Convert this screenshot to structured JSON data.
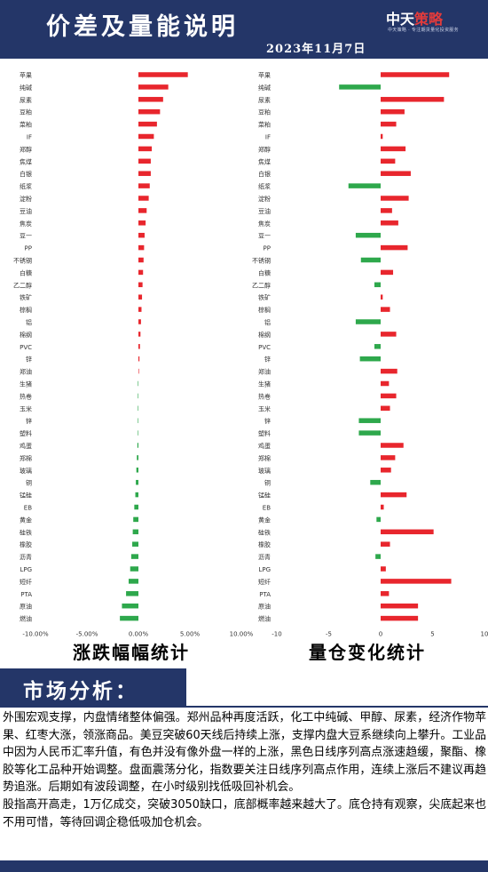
{
  "header": {
    "title": "价差及量能说明",
    "date": "2023年11月7日",
    "logo_main_a": "中天",
    "logo_main_b": "策略",
    "logo_sub": "中天策略 · 专注期货量化投资服务"
  },
  "colors": {
    "navy": "#243668",
    "up": "#e8262d",
    "down": "#2ea84c"
  },
  "chart_data": [
    {
      "type": "bar",
      "orientation": "horizontal",
      "title": "涨跌幅幅统计",
      "categories": [
        "苹果",
        "纯碱",
        "尿素",
        "豆粕",
        "菜粕",
        "IF",
        "郑醇",
        "焦煤",
        "白银",
        "纸浆",
        "淀粉",
        "豆油",
        "焦炭",
        "豆一",
        "PP",
        "不锈钢",
        "白糖",
        "乙二醇",
        "铁矿",
        "棕榈",
        "铝",
        "棉纲",
        "PVC",
        "锌",
        "郑油",
        "生猪",
        "热卷",
        "玉米",
        "锌",
        "塑料",
        "鸡蛋",
        "郑棉",
        "玻璃",
        "铜",
        "锰硅",
        "EB",
        "黄金",
        "硅铁",
        "橡胶",
        "沥青",
        "LPG",
        "短纤",
        "PTA",
        "原油",
        "燃油"
      ],
      "values": [
        4.8,
        2.9,
        2.4,
        2.1,
        1.8,
        1.5,
        1.3,
        1.2,
        1.2,
        1.1,
        1.0,
        0.8,
        0.7,
        0.6,
        0.55,
        0.5,
        0.45,
        0.4,
        0.35,
        0.3,
        0.25,
        0.2,
        0.15,
        0.1,
        0.05,
        -0.05,
        -0.05,
        -0.05,
        -0.05,
        -0.05,
        -0.1,
        -0.15,
        -0.2,
        -0.25,
        -0.3,
        -0.4,
        -0.5,
        -0.55,
        -0.6,
        -0.7,
        -0.8,
        -0.95,
        -1.2,
        -1.6,
        -1.8
      ],
      "xlim": [
        -10,
        10
      ],
      "tick_labels": [
        "-10.00%",
        "-5.00%",
        "0.00%",
        "5.00%",
        "10.00%"
      ]
    },
    {
      "type": "bar",
      "orientation": "horizontal",
      "title": "量仓变化统计",
      "categories": [
        "苹果",
        "纯碱",
        "尿素",
        "豆粕",
        "菜粕",
        "IF",
        "郑醇",
        "焦煤",
        "白银",
        "纸浆",
        "淀粉",
        "豆油",
        "焦炭",
        "豆一",
        "PP",
        "不锈钢",
        "白糖",
        "乙二醇",
        "铁矿",
        "棕榈",
        "铝",
        "棉纲",
        "PVC",
        "锌",
        "郑油",
        "生猪",
        "热卷",
        "玉米",
        "锌",
        "塑料",
        "鸡蛋",
        "郑棉",
        "玻璃",
        "铜",
        "锰硅",
        "EB",
        "黄金",
        "硅铁",
        "橡胶",
        "沥青",
        "LPG",
        "短纤",
        "PTA",
        "原油",
        "燃油"
      ],
      "values": [
        6.6,
        -4.0,
        6.1,
        2.3,
        1.5,
        0.2,
        2.4,
        1.4,
        2.9,
        -3.1,
        2.7,
        1.1,
        1.7,
        -2.4,
        2.6,
        -1.9,
        1.2,
        -0.6,
        0.2,
        0.9,
        -2.4,
        1.5,
        -0.6,
        -2.0,
        1.6,
        0.8,
        1.5,
        0.9,
        -2.1,
        -2.1,
        2.2,
        1.4,
        1.0,
        -1.0,
        2.5,
        0.3,
        -0.4,
        5.1,
        0.9,
        -0.5,
        0.5,
        6.8,
        0.8,
        3.6,
        3.6
      ],
      "xlim": [
        -10,
        10
      ],
      "tick_labels": [
        "-10",
        "-5",
        "0",
        "5",
        "10"
      ]
    }
  ],
  "analysis": {
    "section_title": "市场分析：",
    "paragraphs": [
      "外围宏观支撑，内盘情绪整体偏强。郑州品种再度活跃，化工中纯碱、甲醇、尿素，经济作物苹果、红枣大涨，领涨商品。美豆突破60天线后持续上涨，支撑内盘大豆系继续向上攀升。工业品中因为人民币汇率升值，有色并没有像外盘一样的上涨，黑色日线序列高点涨速趋缓，聚酯、橡胶等化工品种开始调整。盘面震荡分化，指数要关注日线序列高点作用，连续上涨后不建议再趋势追涨。后期如有波段调整，在小时级别找低吸回补机会。",
      "股指高开高走，1万亿成交，突破3050缺口，底部概率越来越大了。底仓持有观察，尖底起来也不用可惜，等待回调企稳低吸加仓机会。"
    ]
  }
}
